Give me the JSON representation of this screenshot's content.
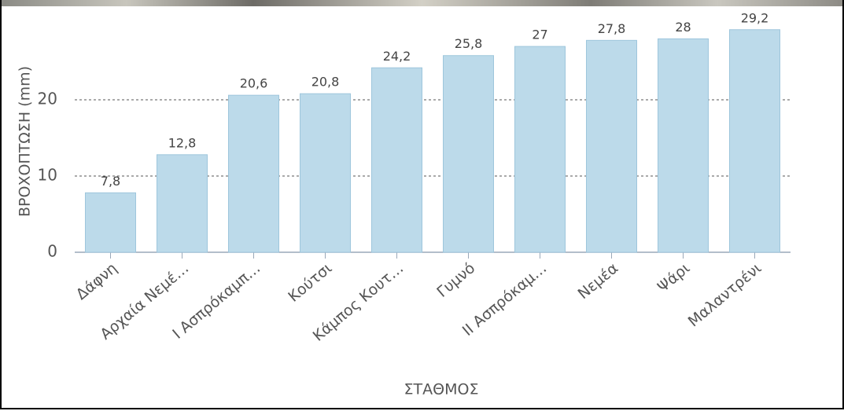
{
  "chart_data": {
    "type": "bar",
    "x_label": "ΣΤΑΘΜΟΣ",
    "y_label": "ΒΡΟΧΟΠΤΩΣΗ (mm)",
    "categories": [
      "Δάφνη",
      "Αρχαία Νεμέ…",
      "Ι Ασπρόκαμπ…",
      "Κούτσι",
      "Κάμπος Κουτ…",
      "Γυμνό",
      "ΙΙ Ασπρόκαμ…",
      "Νεμέα",
      "Ψάρι",
      "Μαλαντρένι"
    ],
    "values": [
      7.8,
      12.8,
      20.6,
      20.8,
      24.2,
      25.8,
      27,
      27.8,
      28,
      29.2
    ],
    "value_labels": [
      "7,8",
      "12,8",
      "20,6",
      "20,8",
      "24,2",
      "25,8",
      "27",
      "27,8",
      "28",
      "29,2"
    ],
    "color": "#bcdaea",
    "ylim": [
      0,
      30
    ],
    "yticks": [
      0,
      10,
      20
    ],
    "grid": true
  }
}
